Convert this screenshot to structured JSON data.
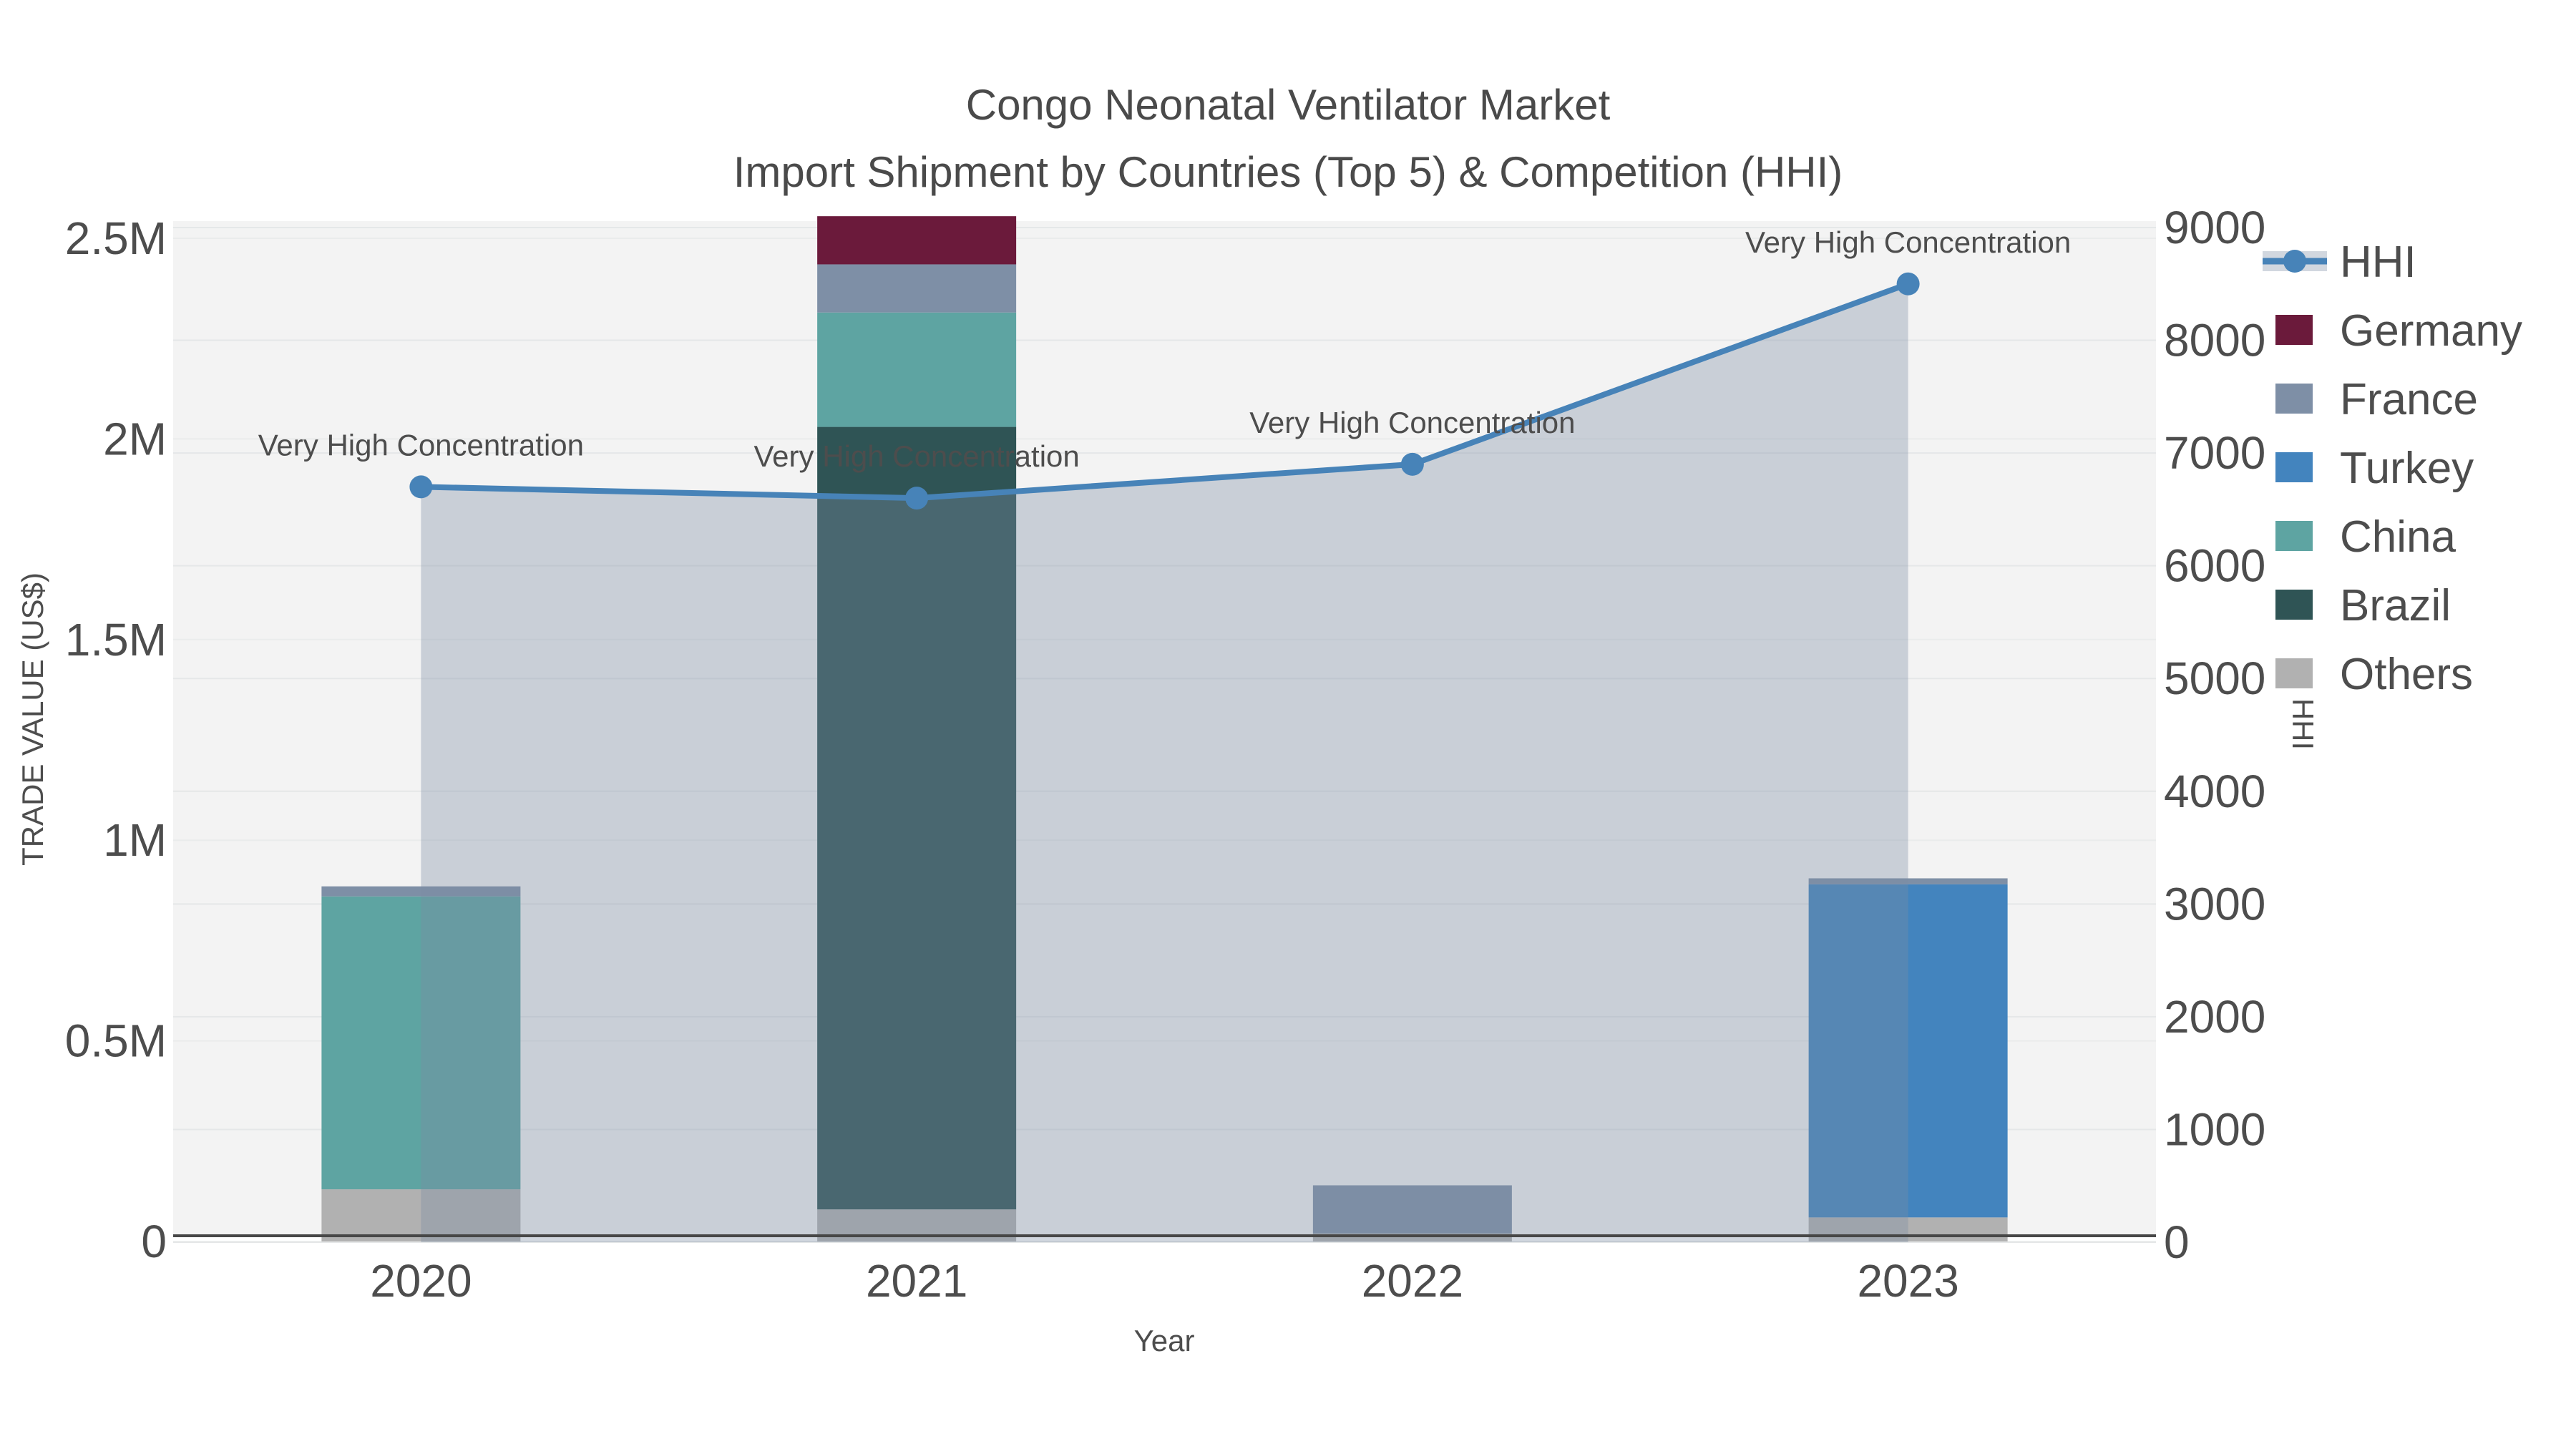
{
  "title": {
    "line1": "Congo Neonatal Ventilator Market",
    "line2": "Import Shipment by Countries (Top 5) & Competition (HHI)"
  },
  "chart_data": {
    "type": "stacked-bar + line (dual y-axis combo)",
    "categories": [
      "2020",
      "2021",
      "2022",
      "2023"
    ],
    "xaxis": {
      "title": "Year"
    },
    "yaxis_left": {
      "title": "TRADE VALUE (US$)",
      "range": [
        0,
        2500000
      ],
      "ticks": [
        {
          "value": 0,
          "label": "0"
        },
        {
          "value": 500000,
          "label": "0.5M"
        },
        {
          "value": 1000000,
          "label": "1M"
        },
        {
          "value": 1500000,
          "label": "1.5M"
        },
        {
          "value": 2000000,
          "label": "2M"
        },
        {
          "value": 2500000,
          "label": "2.5M"
        }
      ]
    },
    "yaxis_right": {
      "title": "HHI",
      "range": [
        0,
        9000
      ],
      "ticks": [
        {
          "value": 0,
          "label": "0"
        },
        {
          "value": 1000,
          "label": "1000"
        },
        {
          "value": 2000,
          "label": "2000"
        },
        {
          "value": 3000,
          "label": "3000"
        },
        {
          "value": 4000,
          "label": "4000"
        },
        {
          "value": 5000,
          "label": "5000"
        },
        {
          "value": 6000,
          "label": "6000"
        },
        {
          "value": 7000,
          "label": "7000"
        },
        {
          "value": 8000,
          "label": "8000"
        },
        {
          "value": 9000,
          "label": "9000"
        }
      ]
    },
    "bar_series_bottom_to_top": [
      {
        "name": "Others",
        "color": "#B1B1B1",
        "values": [
          130000,
          80000,
          20000,
          60000
        ]
      },
      {
        "name": "Brazil",
        "color": "#2F5455",
        "values": [
          0,
          1950000,
          0,
          0
        ]
      },
      {
        "name": "China",
        "color": "#5EA4A2",
        "values": [
          730000,
          285000,
          0,
          0
        ]
      },
      {
        "name": "Turkey",
        "color": "#4384BE",
        "values": [
          0,
          0,
          0,
          830000
        ]
      },
      {
        "name": "France",
        "color": "#7E8FA6",
        "values": [
          25000,
          120000,
          120000,
          15000
        ]
      },
      {
        "name": "Germany",
        "color": "#6B1A3B",
        "values": [
          0,
          120000,
          0,
          0
        ]
      }
    ],
    "line_series": {
      "name": "HHI",
      "axis": "right",
      "color": "#4783B8",
      "area_fill": "rgba(124,140,162,0.35)",
      "values": [
        6700,
        6600,
        6900,
        8500
      ]
    },
    "annotations": [
      {
        "category": "2020",
        "text": "Very High Concentration"
      },
      {
        "category": "2021",
        "text": "Very High Concentration"
      },
      {
        "category": "2022",
        "text": "Very High Concentration"
      },
      {
        "category": "2023",
        "text": "Very High Concentration"
      }
    ],
    "legend": [
      {
        "label": "HHI",
        "type": "line"
      },
      {
        "label": "Germany",
        "type": "swatch",
        "color": "#6B1A3B"
      },
      {
        "label": "France",
        "type": "swatch",
        "color": "#7E8FA6"
      },
      {
        "label": "Turkey",
        "type": "swatch",
        "color": "#4384BE"
      },
      {
        "label": "China",
        "type": "swatch",
        "color": "#5EA4A2"
      },
      {
        "label": "Brazil",
        "type": "swatch",
        "color": "#2F5455"
      },
      {
        "label": "Others",
        "type": "swatch",
        "color": "#B1B1B1"
      }
    ],
    "colors": {
      "plot_background": "#F3F3F3",
      "gridline": "#E5E7E8",
      "axis_line": "#474747",
      "tick_text": "#4D4D4D",
      "annotation_text": "#000000"
    }
  }
}
